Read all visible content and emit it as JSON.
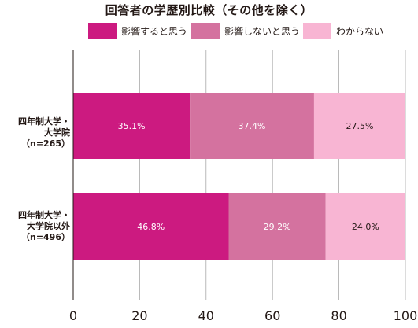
{
  "chart_data": {
    "type": "bar",
    "orientation": "horizontal",
    "stacked": true,
    "title": "回答者の学歴別比較（その他を除く）",
    "categories": [
      "四年制大学・\n大学院（n=265）",
      "四年制大学・\n大学院以外\n（n=496）"
    ],
    "series": [
      {
        "name": "影響すると思う",
        "values": [
          35.1,
          46.8
        ],
        "labels": [
          "35.1%",
          "46.8%"
        ],
        "color": "#cc1a80",
        "label_color": "#ffffff"
      },
      {
        "name": "影響しないと思う",
        "values": [
          37.4,
          29.2
        ],
        "labels": [
          "37.4%",
          "29.2%"
        ],
        "color": "#d4729f",
        "label_color": "#ffffff"
      },
      {
        "name": "わからない",
        "values": [
          27.5,
          24.0
        ],
        "labels": [
          "27.5%",
          "24.0%"
        ],
        "color": "#f8b5d3",
        "label_color": "#231815"
      }
    ],
    "xlim": [
      0,
      100
    ],
    "xticks": [
      "0",
      "20",
      "40",
      "60",
      "80",
      "100"
    ],
    "grid": true,
    "legend_position": "top"
  }
}
